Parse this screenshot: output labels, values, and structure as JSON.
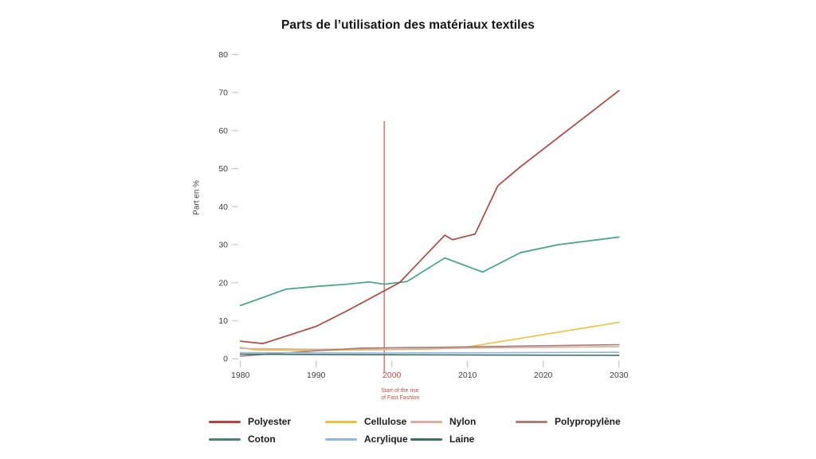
{
  "page": {
    "background": "#ffffff"
  },
  "chart_data": {
    "type": "line",
    "title": "Parts de l’utilisation des matériaux textiles",
    "ylabel": "Part en %",
    "xlabel": "",
    "xlim": [
      1980,
      2030
    ],
    "ylim": [
      0,
      80
    ],
    "yticks": [
      0,
      10,
      20,
      30,
      40,
      50,
      60,
      70,
      80
    ],
    "xticks": [
      1980,
      1990,
      2000,
      2010,
      2020,
      2030
    ],
    "xtick_highlight": {
      "value": 2000,
      "color": "#d04a3c"
    },
    "tick_label_color": "#3d3d3d",
    "tick_mark_color": "#c9c9c9",
    "grid": false,
    "legend_position": "bottom",
    "marker_line": {
      "x": 1999,
      "top_value": 62.5,
      "bottom_value": -3.5,
      "color": "#e6695e",
      "annotation_lines": [
        "Start of the rise",
        "of Fast Fashion"
      ],
      "annotation_color": "#d04a3c"
    },
    "series": [
      {
        "name": "Polyester",
        "color": "#b5453c",
        "points": [
          [
            1980,
            4.6
          ],
          [
            1983,
            4.0
          ],
          [
            1990,
            8.5
          ],
          [
            1994,
            12.5
          ],
          [
            2001,
            20.0
          ],
          [
            2007,
            32.5
          ],
          [
            2008,
            31.3
          ],
          [
            2011,
            32.8
          ],
          [
            2014,
            45.5
          ],
          [
            2017,
            50.5
          ],
          [
            2030,
            70.5
          ]
        ]
      },
      {
        "name": "Cellulose",
        "color": "#ecc23c",
        "points": [
          [
            1980,
            3.0
          ],
          [
            1982,
            2.3
          ],
          [
            1990,
            2.2
          ],
          [
            2000,
            2.4
          ],
          [
            2006,
            2.6
          ],
          [
            2010,
            3.1
          ],
          [
            2030,
            9.6
          ]
        ]
      },
      {
        "name": "Nylon",
        "color": "#d9afa3",
        "points": [
          [
            1980,
            2.7
          ],
          [
            1990,
            2.5
          ],
          [
            2000,
            2.5
          ],
          [
            2010,
            2.8
          ],
          [
            2030,
            3.2
          ]
        ]
      },
      {
        "name": "Polypropylène",
        "color": "#a87f74",
        "points": [
          [
            1980,
            0.7
          ],
          [
            1985,
            1.4
          ],
          [
            1990,
            2.1
          ],
          [
            1996,
            2.8
          ],
          [
            2005,
            3.0
          ],
          [
            2030,
            3.7
          ]
        ]
      },
      {
        "name": "Coton",
        "color": "#3fa584",
        "legend_color": "#4e7f7b",
        "points": [
          [
            1980,
            14.0
          ],
          [
            1986,
            18.3
          ],
          [
            1990,
            19.0
          ],
          [
            1994,
            19.6
          ],
          [
            1997,
            20.2
          ],
          [
            1999,
            19.6
          ],
          [
            2002,
            20.3
          ],
          [
            2007,
            26.5
          ],
          [
            2012,
            22.8
          ],
          [
            2017,
            27.9
          ],
          [
            2022,
            30.0
          ],
          [
            2030,
            32.0
          ]
        ]
      },
      {
        "name": "Acrylique",
        "color": "#8fb8d9",
        "points": [
          [
            1980,
            1.6
          ],
          [
            2000,
            1.5
          ],
          [
            2030,
            1.7
          ]
        ]
      },
      {
        "name": "Laine",
        "color": "#3d6b66",
        "points": [
          [
            1980,
            1.2
          ],
          [
            2000,
            1.05
          ],
          [
            2030,
            0.9
          ]
        ]
      }
    ]
  }
}
